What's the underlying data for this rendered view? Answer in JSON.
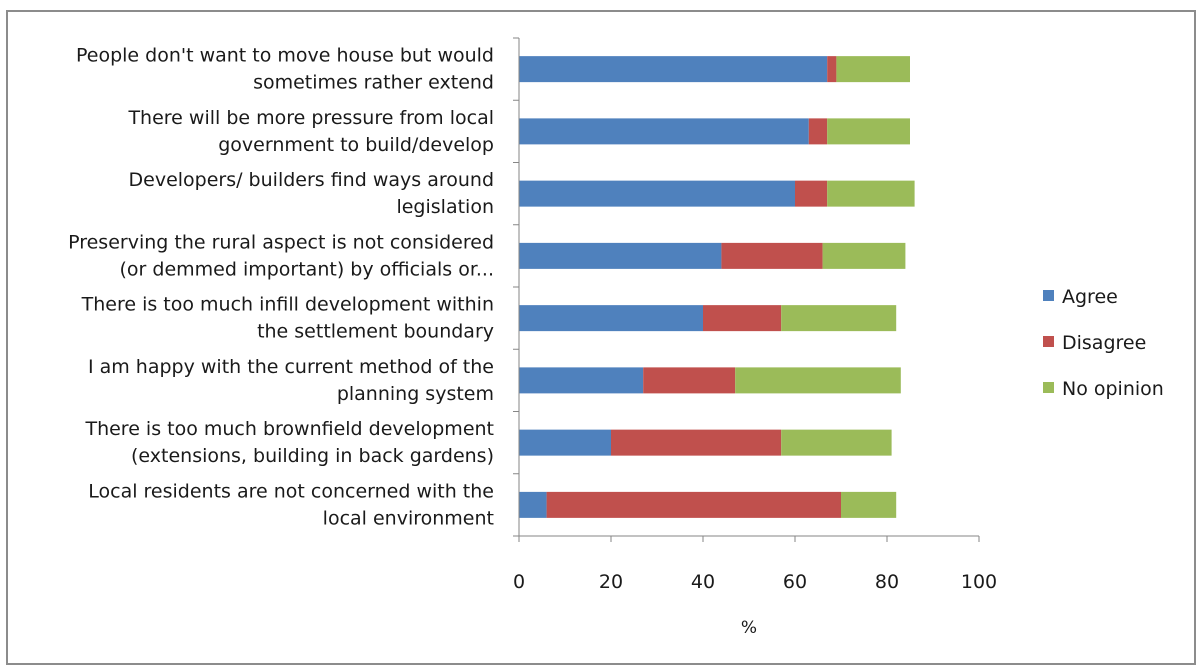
{
  "chart_data": {
    "type": "bar",
    "orientation": "horizontal",
    "stacked": true,
    "categories": [
      [
        "People don't want to move house but would",
        "sometimes rather extend"
      ],
      [
        "There will be more pressure from local",
        "government to build/develop"
      ],
      [
        "Developers/ builders find ways around",
        "legislation"
      ],
      [
        "Preserving the rural aspect is not considered",
        "(or demmed important) by officials or..."
      ],
      [
        "There is too much infill development within",
        "the settlement boundary"
      ],
      [
        "I am happy with the current method of the",
        "planning system"
      ],
      [
        "There is too much brownfield development",
        "(extensions, building in back gardens)"
      ],
      [
        "Local residents are not concerned with the",
        "local environment"
      ]
    ],
    "series": [
      {
        "name": "Agree",
        "color": "#4f81bd",
        "values": [
          67,
          63,
          60,
          44,
          40,
          27,
          20,
          6
        ]
      },
      {
        "name": "Disagree",
        "color": "#c0504d",
        "values": [
          2,
          4,
          7,
          22,
          17,
          20,
          37,
          64
        ]
      },
      {
        "name": "No opinion",
        "color": "#9bbb59",
        "values": [
          16,
          18,
          19,
          18,
          25,
          36,
          24,
          12
        ]
      }
    ],
    "xlim": [
      0,
      100
    ],
    "xticks": [
      "0",
      "20",
      "40",
      "60",
      "80",
      "100"
    ],
    "xlabel": "%",
    "ylabel": "",
    "grid": false,
    "legend_position": "right"
  }
}
